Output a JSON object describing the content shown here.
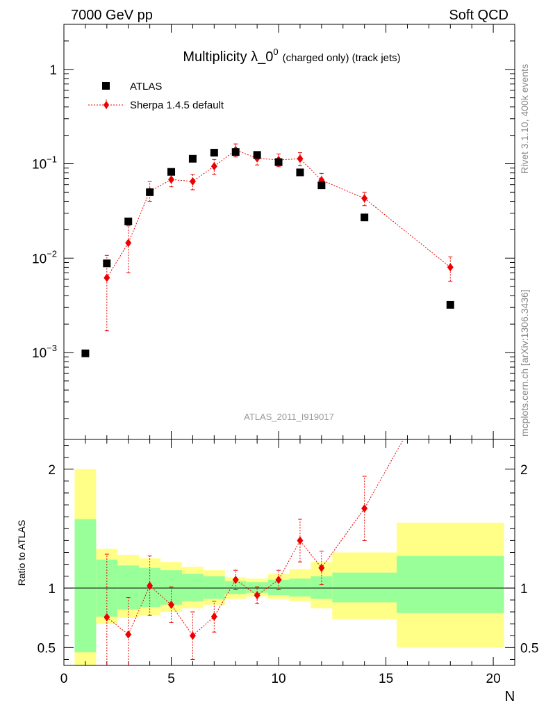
{
  "header": {
    "left": "7000 GeV pp",
    "right": "Soft QCD",
    "side_top": "Rivet 3.1.10,  400k events",
    "side_bottom": "mcplots.cern.ch [arXiv:1306.3436]"
  },
  "chart_data": [
    {
      "type": "scatter",
      "panel": "main",
      "title": "Multiplicity λ_0",
      "title_sup": "0",
      "title_suffix": "(charged only) (track jets)",
      "watermark": "ATLAS_2011_I919017",
      "yscale": "log",
      "ylim": [
        0.00012,
        3.0
      ],
      "xlim": [
        0,
        21
      ],
      "ytick_labels": [
        {
          "value": 1,
          "base": "1",
          "exp": ""
        },
        {
          "value": 0.1,
          "base": "10",
          "exp": "−1"
        },
        {
          "value": 0.01,
          "base": "10",
          "exp": "−2"
        },
        {
          "value": 0.001,
          "base": "10",
          "exp": "−3"
        }
      ],
      "legend": [
        {
          "label": "ATLAS",
          "marker": "square",
          "color": "#000000"
        },
        {
          "label": "Sherpa 1.4.5 default",
          "marker": "diamond",
          "color": "#ee0000"
        }
      ],
      "series": [
        {
          "name": "ATLAS",
          "x": [
            1,
            2,
            3,
            4,
            5,
            6,
            7,
            8,
            9,
            10,
            11,
            12,
            14,
            18
          ],
          "y": [
            0.00098,
            0.0088,
            0.0245,
            0.05,
            0.082,
            0.113,
            0.131,
            0.133,
            0.124,
            0.104,
            0.081,
            0.059,
            0.027,
            0.0032
          ]
        },
        {
          "name": "Sherpa 1.4.5 default",
          "x": [
            2,
            3,
            4,
            5,
            6,
            7,
            8,
            9,
            10,
            11,
            12,
            14,
            18
          ],
          "y": [
            0.0062,
            0.0145,
            0.051,
            0.068,
            0.065,
            0.094,
            0.14,
            0.114,
            0.11,
            0.113,
            0.067,
            0.043,
            0.008
          ],
          "err_lo": [
            0.0045,
            0.0075,
            0.011,
            0.011,
            0.012,
            0.017,
            0.022,
            0.017,
            0.017,
            0.018,
            0.012,
            0.007,
            0.0023
          ],
          "err_hi": [
            0.0045,
            0.0075,
            0.014,
            0.011,
            0.012,
            0.017,
            0.022,
            0.017,
            0.017,
            0.018,
            0.012,
            0.007,
            0.0023
          ]
        }
      ]
    },
    {
      "type": "line",
      "panel": "ratio",
      "ylabel": "Ratio to ATLAS",
      "xlabel": "N",
      "xlim": [
        0,
        21
      ],
      "ylim": [
        0.35,
        2.25
      ],
      "xticks": [
        0,
        5,
        10,
        15,
        20
      ],
      "xtick_labels": [
        "0",
        "5",
        "10",
        "15",
        "20"
      ],
      "yticks": [
        0.5,
        1,
        2
      ],
      "ytick_labels": [
        "0.5",
        "1",
        "2"
      ],
      "bands": {
        "bins": [
          [
            0.5,
            1.5
          ],
          [
            1.5,
            2.5
          ],
          [
            2.5,
            3.5
          ],
          [
            3.5,
            4.5
          ],
          [
            4.5,
            5.5
          ],
          [
            5.5,
            6.5
          ],
          [
            6.5,
            7.5
          ],
          [
            7.5,
            8.5
          ],
          [
            8.5,
            9.5
          ],
          [
            9.5,
            10.5
          ],
          [
            10.5,
            11.5
          ],
          [
            11.5,
            12.5
          ],
          [
            12.5,
            15.5
          ],
          [
            15.5,
            20.5
          ]
        ],
        "inner_lo": [
          0.46,
          0.76,
          0.82,
          0.84,
          0.86,
          0.89,
          0.91,
          0.95,
          0.96,
          0.94,
          0.93,
          0.91,
          0.88,
          0.79
        ],
        "inner_hi": [
          1.58,
          1.24,
          1.19,
          1.17,
          1.15,
          1.12,
          1.1,
          1.06,
          1.05,
          1.07,
          1.08,
          1.1,
          1.13,
          1.27
        ],
        "outer_lo": [
          0.35,
          0.7,
          0.75,
          0.77,
          0.8,
          0.83,
          0.86,
          0.91,
          0.93,
          0.91,
          0.89,
          0.83,
          0.74,
          0.5
        ],
        "outer_hi": [
          2.0,
          1.33,
          1.28,
          1.25,
          1.22,
          1.18,
          1.15,
          1.09,
          1.08,
          1.12,
          1.16,
          1.22,
          1.3,
          1.55
        ]
      },
      "series": [
        {
          "name": "Sherpa 1.4.5 default / ATLAS",
          "x": [
            2,
            3,
            4,
            5,
            6,
            7,
            8,
            9,
            10,
            11,
            12,
            14
          ],
          "y": [
            0.755,
            0.61,
            1.02,
            0.86,
            0.6,
            0.76,
            1.07,
            0.94,
            1.07,
            1.4,
            1.17,
            1.67
          ],
          "err_lo": [
            0.53,
            0.31,
            0.25,
            0.15,
            0.2,
            0.13,
            0.08,
            0.07,
            0.08,
            0.18,
            0.14,
            0.27
          ],
          "err_hi": [
            0.53,
            0.31,
            0.25,
            0.15,
            0.2,
            0.13,
            0.08,
            0.07,
            0.08,
            0.18,
            0.14,
            0.27
          ],
          "tail_to": [
            18,
            2.95
          ]
        }
      ]
    }
  ],
  "colors": {
    "data": "#000000",
    "mc": "#ee0000",
    "band_inner": "#99ff99",
    "band_outer": "#ffff88",
    "watermark": "#999999"
  }
}
